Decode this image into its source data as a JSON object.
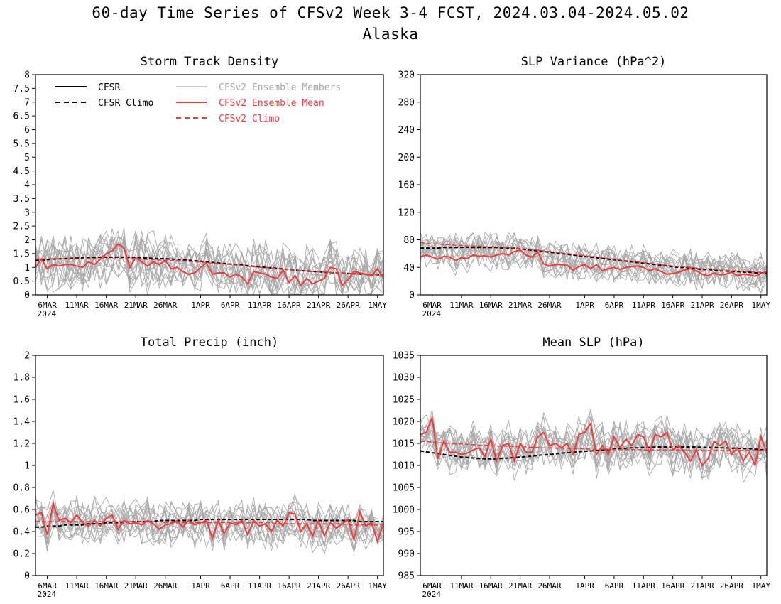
{
  "page": {
    "title": "60-day Time Series of CFSv2 Week 3-4 FCST, 2024.03.04-2024.05.02",
    "subtitle": "Alaska"
  },
  "colors": {
    "cfsr": "#000000",
    "members": "#a8a8a8",
    "ensemble_mean": "#ee3c3c",
    "cfsv2_climo": "#ee3c3c"
  },
  "legend": {
    "placement": "top-left",
    "items": [
      {
        "label": "CFSR",
        "style": "solid",
        "color": "#000000"
      },
      {
        "label": "CFSR Climo",
        "style": "dashed",
        "color": "#000000"
      },
      {
        "label": "CFSv2 Ensemble Members",
        "style": "solid",
        "color": "#a8a8a8"
      },
      {
        "label": "CFSv2 Ensemble Mean",
        "style": "solid",
        "color": "#ee3c3c"
      },
      {
        "label": "CFSv2 Climo",
        "style": "dashed",
        "color": "#ee3c3c"
      }
    ]
  },
  "x_axis": {
    "tick_days": [
      2,
      7,
      12,
      17,
      22,
      28,
      33,
      38,
      43,
      48,
      53,
      58
    ],
    "tick_labels": [
      "6MAR",
      "11MAR",
      "16MAR",
      "21MAR",
      "26MAR",
      "1APR",
      "6APR",
      "11APR",
      "16APR",
      "21APR",
      "26APR",
      "1MAY"
    ],
    "year_label": "2024",
    "range_days": [
      0,
      59
    ]
  },
  "chart_data": [
    {
      "type": "line",
      "title": "Storm Track Density",
      "ylim": [
        0,
        8
      ],
      "yticks": [
        0,
        0.5,
        1,
        1.5,
        2,
        2.5,
        3,
        3.5,
        4,
        4.5,
        5,
        5.5,
        6,
        6.5,
        7,
        7.5,
        8
      ],
      "ytick_labels": [
        "0",
        "0.5",
        "1",
        "1.5",
        "2",
        "2.5",
        "3",
        "3.5",
        "4",
        "4.5",
        "5",
        "5.5",
        "6",
        "6.5",
        "7",
        "7.5",
        "8"
      ],
      "grid": false,
      "legend": true,
      "series": [
        {
          "role": "cfsr_climo",
          "values": [
            1.25,
            1.26,
            1.28,
            1.3,
            1.31,
            1.32,
            1.33,
            1.34,
            1.35,
            1.36,
            1.36,
            1.37,
            1.37,
            1.37,
            1.37,
            1.37,
            1.36,
            1.36,
            1.35,
            1.34,
            1.33,
            1.32,
            1.31,
            1.3,
            1.29,
            1.27,
            1.26,
            1.24,
            1.22,
            1.2,
            1.18,
            1.16,
            1.14,
            1.12,
            1.1,
            1.08,
            1.06,
            1.04,
            1.02,
            1.0,
            0.98,
            0.96,
            0.94,
            0.92,
            0.9,
            0.88,
            0.87,
            0.85,
            0.84,
            0.82,
            0.81,
            0.8,
            0.79,
            0.78,
            0.77,
            0.76,
            0.75,
            0.74,
            0.73,
            0.72
          ]
        },
        {
          "role": "cfsv2_climo",
          "values": [
            1.3,
            1.3,
            1.31,
            1.31,
            1.31,
            1.31,
            1.31,
            1.31,
            1.31,
            1.31,
            1.31,
            1.31,
            1.31,
            1.31,
            1.31,
            1.31,
            1.31,
            1.3,
            1.3,
            1.29,
            1.28,
            1.27,
            1.26,
            1.25,
            1.24,
            1.23,
            1.22,
            1.2,
            1.19,
            1.17,
            1.15,
            1.14,
            1.12,
            1.1,
            1.08,
            1.06,
            1.04,
            1.02,
            1.0,
            0.99,
            0.97,
            0.95,
            0.93,
            0.92,
            0.9,
            0.88,
            0.87,
            0.85,
            0.84,
            0.83,
            0.81,
            0.8,
            0.79,
            0.78,
            0.77,
            0.76,
            0.75,
            0.74,
            0.73,
            0.72
          ]
        },
        {
          "role": "ensemble_mean",
          "values": [
            1.0,
            1.3,
            0.95,
            1.1,
            1.05,
            1.1,
            1.1,
            1.05,
            1.0,
            1.2,
            1.1,
            1.3,
            1.5,
            1.6,
            1.85,
            1.7,
            1.0,
            1.35,
            1.2,
            1.05,
            1.2,
            1.1,
            1.25,
            0.95,
            1.0,
            0.85,
            0.75,
            0.8,
            1.0,
            1.15,
            0.75,
            0.8,
            0.8,
            0.65,
            0.75,
            0.65,
            0.4,
            0.85,
            0.8,
            0.75,
            0.65,
            0.6,
            0.9,
            0.45,
            0.7,
            0.35,
            0.6,
            0.4,
            0.5,
            0.6,
            1.0,
            0.95,
            0.35,
            0.55,
            0.85,
            0.8,
            0.75,
            0.7,
            0.95,
            0.6
          ]
        }
      ]
    },
    {
      "type": "line",
      "title": "SLP Variance (hPa^2)",
      "ylim": [
        0,
        320
      ],
      "yticks": [
        0,
        40,
        80,
        120,
        160,
        200,
        240,
        280,
        320
      ],
      "ytick_labels": [
        "0",
        "40",
        "80",
        "120",
        "160",
        "200",
        "240",
        "280",
        "320"
      ],
      "grid": false,
      "legend": false,
      "series": [
        {
          "role": "cfsr_climo",
          "values": [
            68,
            68,
            68,
            68,
            69,
            69,
            69,
            69,
            69,
            69,
            69,
            69,
            69,
            69,
            68,
            68,
            68,
            67,
            66,
            65,
            64,
            63,
            62,
            61,
            60,
            59,
            58,
            57,
            56,
            55,
            54,
            53,
            52,
            51,
            50,
            49,
            48,
            47,
            46,
            45,
            44,
            43,
            42,
            41,
            40,
            40,
            39,
            38,
            37,
            37,
            36,
            35,
            35,
            34,
            34,
            33,
            33,
            32,
            32,
            32
          ]
        },
        {
          "role": "cfsv2_climo",
          "values": [
            76,
            75,
            74,
            74,
            73,
            73,
            72,
            72,
            71,
            71,
            71,
            70,
            70,
            70,
            69,
            69,
            68,
            67,
            67,
            66,
            65,
            64,
            63,
            62,
            61,
            60,
            59,
            58,
            57,
            56,
            55,
            54,
            53,
            52,
            51,
            50,
            49,
            48,
            47,
            46,
            45,
            44,
            43,
            42,
            41,
            41,
            40,
            39,
            38,
            38,
            37,
            36,
            36,
            35,
            35,
            34,
            34,
            33,
            33,
            33
          ]
        },
        {
          "role": "ensemble_mean",
          "values": [
            55,
            58,
            55,
            52,
            56,
            55,
            50,
            54,
            53,
            58,
            56,
            57,
            55,
            58,
            60,
            58,
            63,
            65,
            58,
            55,
            62,
            45,
            42,
            44,
            44,
            43,
            36,
            41,
            44,
            38,
            44,
            35,
            38,
            40,
            37,
            40,
            41,
            42,
            40,
            35,
            38,
            34,
            30,
            31,
            33,
            36,
            38,
            35,
            30,
            28,
            32,
            29,
            30,
            33,
            28,
            30,
            29,
            27,
            31,
            34
          ]
        }
      ]
    },
    {
      "type": "line",
      "title": "Total Precip (inch)",
      "ylim": [
        0,
        2
      ],
      "yticks": [
        0,
        0.2,
        0.4,
        0.6,
        0.8,
        1,
        1.2,
        1.4,
        1.6,
        1.8,
        2
      ],
      "ytick_labels": [
        "0",
        "0.2",
        "0.4",
        "0.6",
        "0.8",
        "1",
        "1.2",
        "1.4",
        "1.6",
        "1.8",
        "2"
      ],
      "grid": false,
      "legend": false,
      "series": [
        {
          "role": "cfsr_climo",
          "values": [
            0.44,
            0.44,
            0.45,
            0.45,
            0.45,
            0.46,
            0.46,
            0.46,
            0.46,
            0.47,
            0.47,
            0.47,
            0.48,
            0.48,
            0.48,
            0.48,
            0.49,
            0.49,
            0.49,
            0.49,
            0.49,
            0.5,
            0.5,
            0.5,
            0.5,
            0.5,
            0.5,
            0.5,
            0.51,
            0.51,
            0.51,
            0.51,
            0.51,
            0.51,
            0.51,
            0.51,
            0.51,
            0.51,
            0.51,
            0.51,
            0.51,
            0.51,
            0.51,
            0.51,
            0.51,
            0.51,
            0.51,
            0.5,
            0.5,
            0.5,
            0.5,
            0.5,
            0.5,
            0.5,
            0.5,
            0.49,
            0.49,
            0.49,
            0.49,
            0.49
          ]
        },
        {
          "role": "cfsv2_climo",
          "values": [
            0.49,
            0.49,
            0.49,
            0.49,
            0.49,
            0.49,
            0.49,
            0.49,
            0.49,
            0.49,
            0.49,
            0.49,
            0.49,
            0.49,
            0.49,
            0.49,
            0.49,
            0.49,
            0.49,
            0.49,
            0.49,
            0.49,
            0.48,
            0.48,
            0.48,
            0.48,
            0.48,
            0.48,
            0.48,
            0.48,
            0.48,
            0.48,
            0.48,
            0.48,
            0.48,
            0.48,
            0.48,
            0.48,
            0.48,
            0.48,
            0.48,
            0.47,
            0.47,
            0.47,
            0.47,
            0.47,
            0.47,
            0.47,
            0.47,
            0.47,
            0.47,
            0.47,
            0.47,
            0.46,
            0.46,
            0.46,
            0.46,
            0.46,
            0.46,
            0.46
          ]
        },
        {
          "role": "ensemble_mean",
          "values": [
            0.55,
            0.57,
            0.37,
            0.65,
            0.5,
            0.52,
            0.48,
            0.55,
            0.48,
            0.45,
            0.5,
            0.45,
            0.52,
            0.55,
            0.42,
            0.5,
            0.47,
            0.48,
            0.46,
            0.5,
            0.47,
            0.42,
            0.46,
            0.47,
            0.5,
            0.44,
            0.5,
            0.46,
            0.48,
            0.5,
            0.34,
            0.5,
            0.38,
            0.48,
            0.46,
            0.5,
            0.37,
            0.5,
            0.45,
            0.47,
            0.4,
            0.5,
            0.45,
            0.57,
            0.56,
            0.4,
            0.47,
            0.36,
            0.5,
            0.36,
            0.48,
            0.43,
            0.47,
            0.51,
            0.32,
            0.58,
            0.45,
            0.48,
            0.31,
            0.48
          ]
        }
      ]
    },
    {
      "type": "line",
      "title": "Mean SLP (hPa)",
      "ylim": [
        985,
        1035
      ],
      "yticks": [
        985,
        990,
        995,
        1000,
        1005,
        1010,
        1015,
        1020,
        1025,
        1030,
        1035
      ],
      "ytick_labels": [
        "985",
        "990",
        "995",
        "1000",
        "1005",
        "1010",
        "1015",
        "1020",
        "1025",
        "1030",
        "1035"
      ],
      "grid": false,
      "legend": false,
      "series": [
        {
          "role": "cfsr_climo",
          "values": [
            1013.3,
            1013.1,
            1012.9,
            1012.7,
            1012.5,
            1012.3,
            1012.1,
            1011.9,
            1011.8,
            1011.7,
            1011.6,
            1011.5,
            1011.5,
            1011.5,
            1011.6,
            1011.7,
            1011.8,
            1011.9,
            1012.0,
            1012.1,
            1012.3,
            1012.4,
            1012.5,
            1012.6,
            1012.8,
            1012.9,
            1013.0,
            1013.1,
            1013.2,
            1013.3,
            1013.4,
            1013.5,
            1013.6,
            1013.7,
            1013.8,
            1013.9,
            1014.0,
            1014.0,
            1014.1,
            1014.1,
            1014.2,
            1014.2,
            1014.2,
            1014.2,
            1014.2,
            1014.2,
            1014.2,
            1014.2,
            1014.1,
            1014.1,
            1014.1,
            1014.0,
            1014.0,
            1013.9,
            1013.9,
            1013.8,
            1013.8,
            1013.7,
            1013.6,
            1013.5
          ]
        },
        {
          "role": "cfsv2_climo",
          "values": [
            1015.5,
            1015.4,
            1015.3,
            1015.2,
            1015.1,
            1015.0,
            1014.9,
            1014.9,
            1014.8,
            1014.7,
            1014.6,
            1014.6,
            1014.5,
            1014.4,
            1014.4,
            1014.3,
            1014.3,
            1014.2,
            1014.2,
            1014.1,
            1014.1,
            1014.0,
            1014.0,
            1013.9,
            1013.9,
            1013.9,
            1013.8,
            1013.8,
            1013.8,
            1013.7,
            1013.7,
            1013.7,
            1013.7,
            1013.6,
            1013.6,
            1013.6,
            1013.6,
            1013.6,
            1013.5,
            1013.5,
            1013.5,
            1013.5,
            1013.5,
            1013.5,
            1013.5,
            1013.5,
            1013.4,
            1013.4,
            1013.4,
            1013.4,
            1013.4,
            1013.4,
            1013.4,
            1013.4,
            1013.4,
            1013.4,
            1013.4,
            1013.4,
            1013.4,
            1013.4
          ]
        },
        {
          "role": "ensemble_mean",
          "values": [
            1017.0,
            1017.5,
            1020.8,
            1011.5,
            1015.5,
            1013.0,
            1013.0,
            1012.5,
            1012.8,
            1013.5,
            1014.0,
            1012.0,
            1016.0,
            1011.0,
            1014.5,
            1015.0,
            1011.0,
            1015.0,
            1013.0,
            1013.0,
            1016.5,
            1017.5,
            1014.5,
            1015.0,
            1014.0,
            1015.0,
            1012.5,
            1017.0,
            1017.5,
            1019.5,
            1012.5,
            1014.5,
            1012.5,
            1016.5,
            1014.0,
            1016.0,
            1014.5,
            1017.0,
            1016.5,
            1013.0,
            1017.0,
            1016.5,
            1017.5,
            1013.5,
            1014.5,
            1013.0,
            1011.0,
            1013.5,
            1010.0,
            1011.5,
            1015.5,
            1014.5,
            1015.5,
            1012.5,
            1014.0,
            1011.0,
            1013.0,
            1010.0,
            1016.5,
            1013.0
          ]
        }
      ]
    }
  ]
}
